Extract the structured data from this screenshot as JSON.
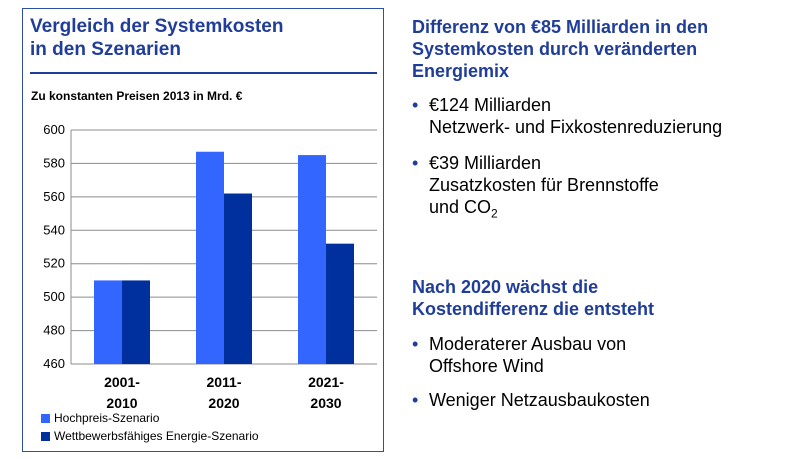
{
  "chart_data": {
    "type": "bar",
    "title": "Vergleich der Systemkosten in den Szenarien",
    "subtitle": "Zu konstanten Preisen 2013 in Mrd. €",
    "categories": [
      "2001-2010",
      "2011-2020",
      "2021-2030"
    ],
    "category_lines": [
      [
        "2001-",
        "2010"
      ],
      [
        "2011-",
        "2020"
      ],
      [
        "2021-",
        "2030"
      ]
    ],
    "series": [
      {
        "name": "Hochpreis-Szenario",
        "values": [
          510,
          587,
          585
        ],
        "color": "#3366ff"
      },
      {
        "name": "Wettbewerbsfähiges Energie-Szenario",
        "values": [
          510,
          562,
          532
        ],
        "color": "#002f9e"
      }
    ],
    "ylim": [
      460,
      600
    ],
    "yticks": [
      460,
      480,
      500,
      520,
      540,
      560,
      580,
      600
    ],
    "xlabel": "",
    "ylabel": "",
    "grid": true,
    "legend_position": "bottom-left"
  },
  "panel": {
    "title_line1": "Vergleich der Systemkosten",
    "title_line2": "in den Szenarien"
  },
  "right": {
    "headline1": [
      "Differenz von €85 Milliarden in den",
      "Systemkosten durch veränderten",
      "Energiemix"
    ],
    "bullet_char": "•",
    "bullet1": [
      "€124 Milliarden",
      "Netzwerk- und Fixkostenreduzierung"
    ],
    "bullet2": [
      "€39 Milliarden",
      "Zusatzkosten für Brennstoffe",
      "und CO",
      "2"
    ],
    "headline2": [
      "Nach 2020 wächst die",
      "Kostendifferenz die entsteht"
    ],
    "bullet3": [
      "Moderaterer Ausbau von",
      "Offshore Wind"
    ],
    "bullet4": "Weniger Netzausbaukosten"
  },
  "colors": {
    "accent": "#1f3d99",
    "bar_light": "#3366ff",
    "bar_dark": "#002f9e"
  }
}
